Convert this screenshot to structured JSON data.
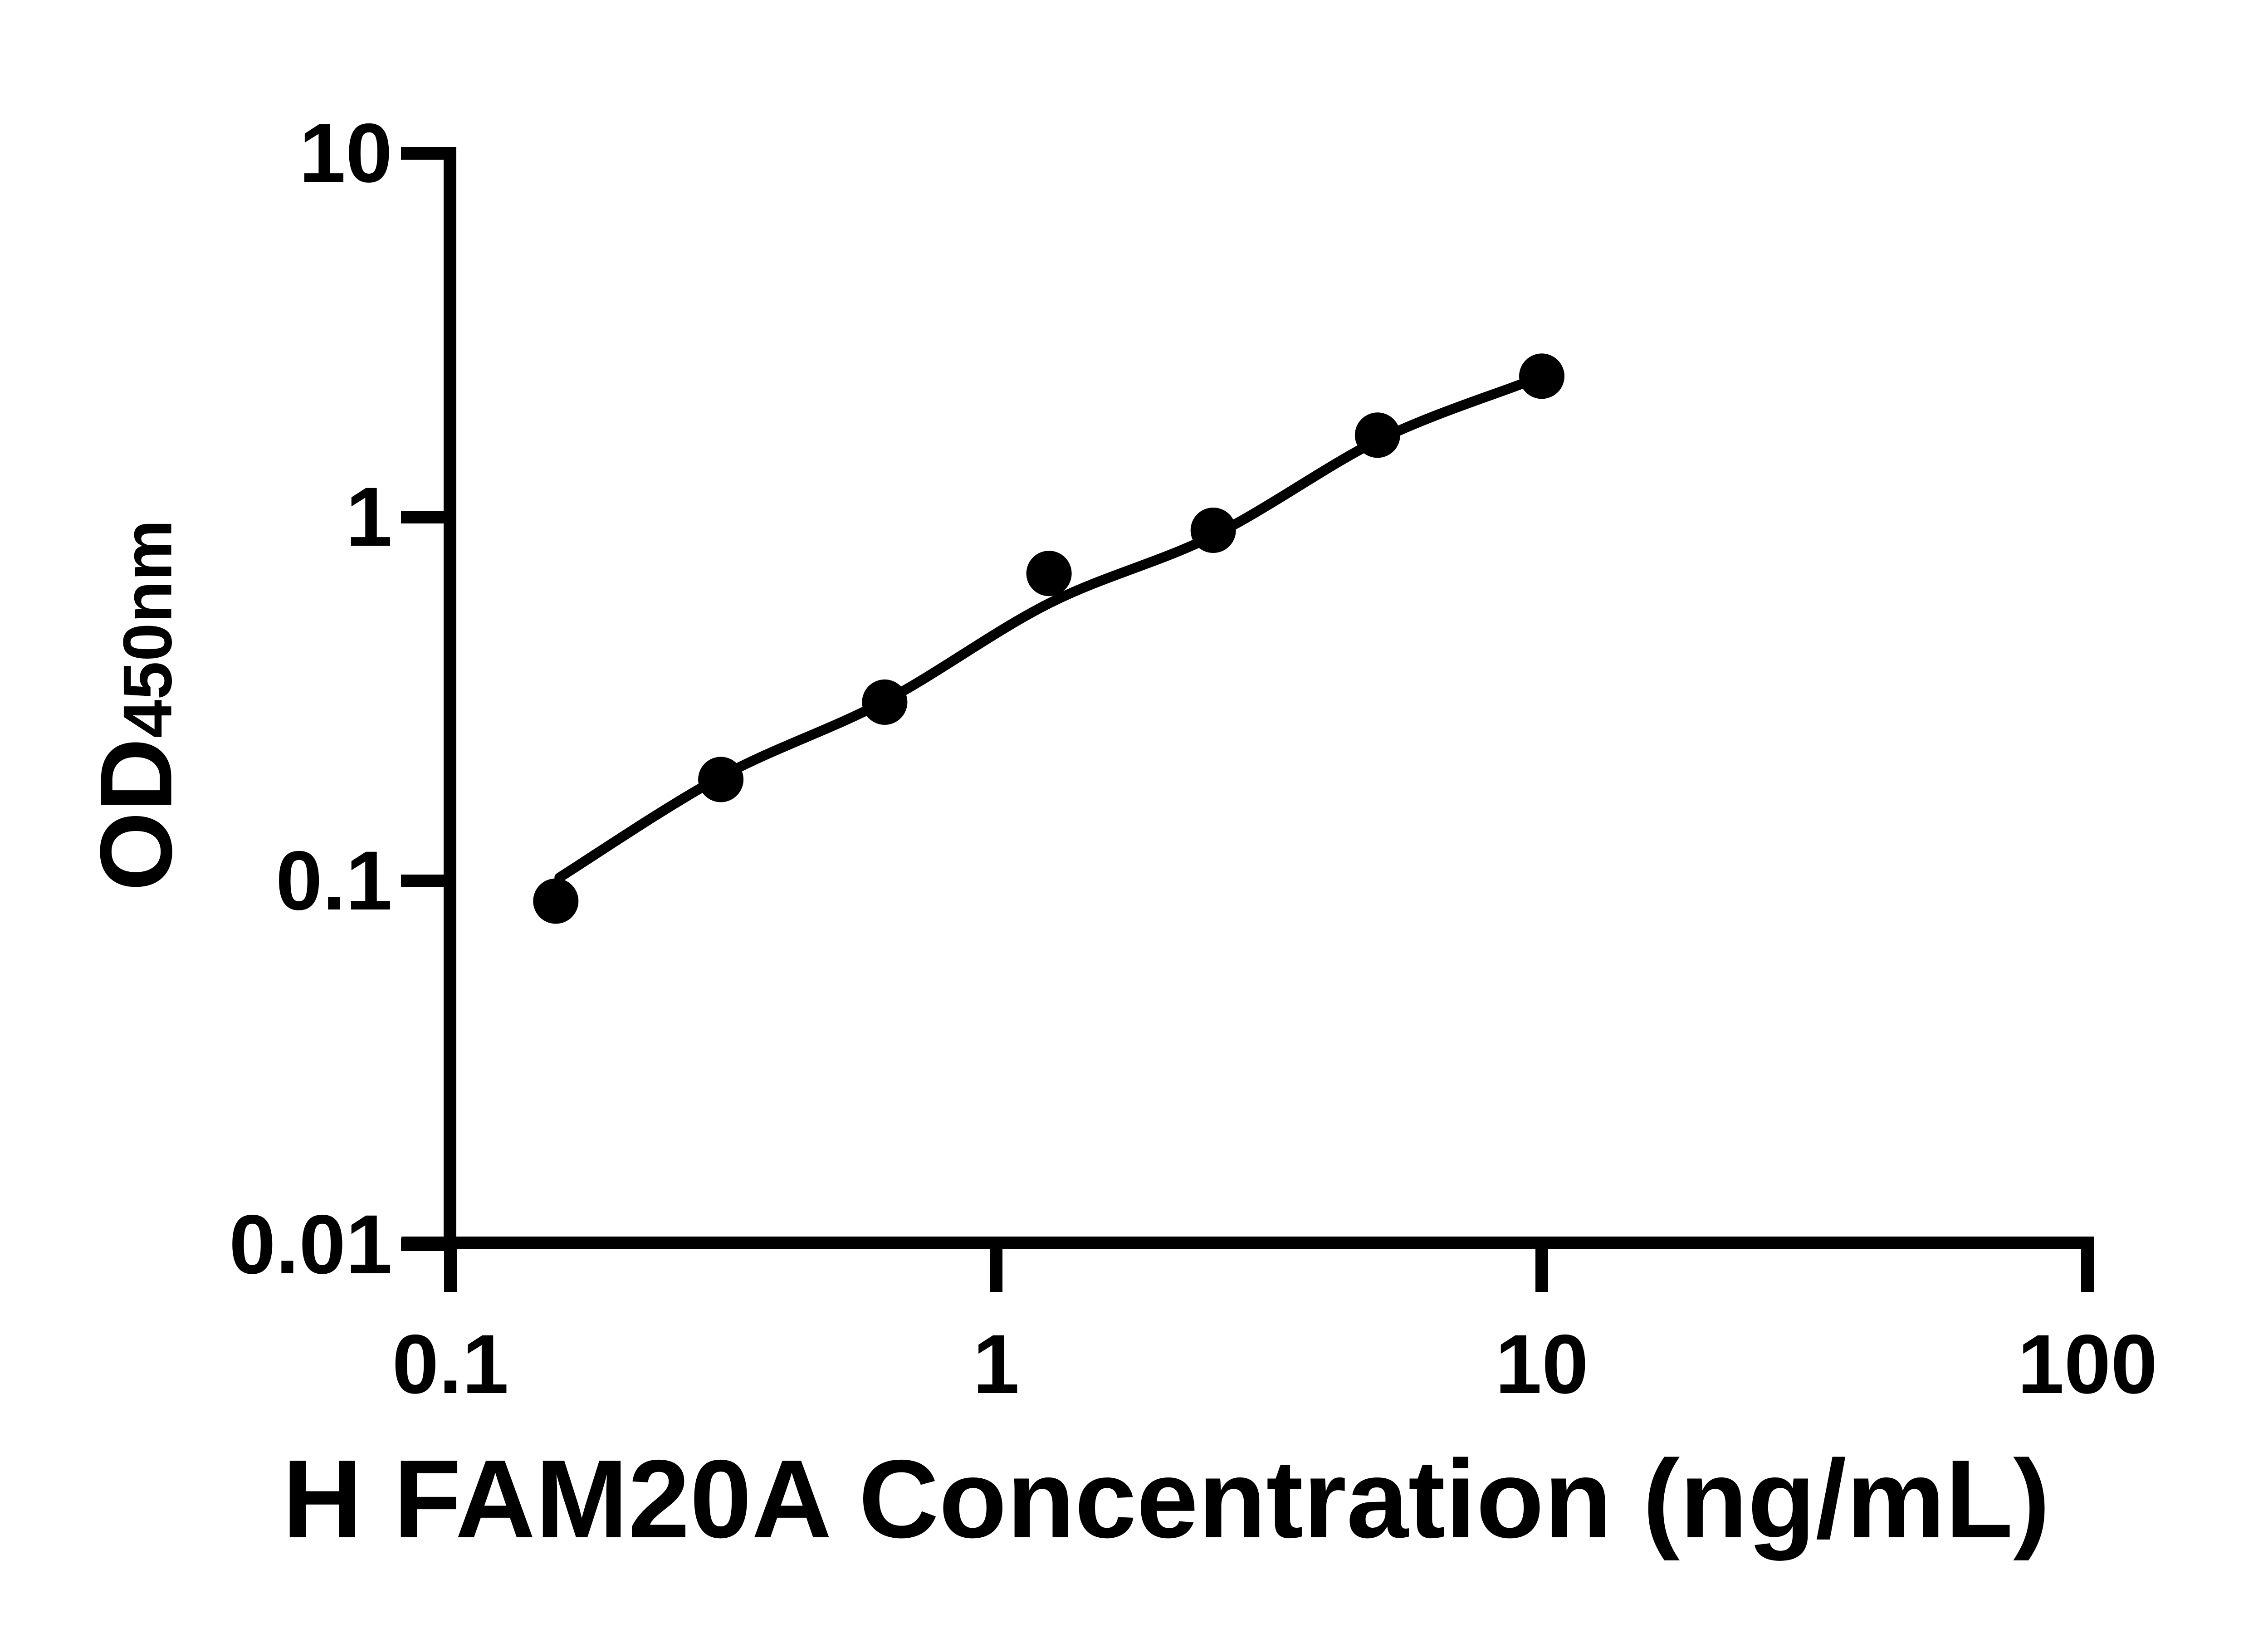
{
  "figure": {
    "background_color": "#ffffff",
    "ink_color": "#000000"
  },
  "chart_data": {
    "type": "scatter",
    "title": "",
    "xlabel": "H FAM20A Concentration (ng/mL)",
    "ylabel": "OD450nm",
    "ylabel_main": "OD",
    "ylabel_sub": "450nm",
    "x_scale": "log10",
    "y_scale": "log10",
    "xlim": [
      0.1,
      100
    ],
    "ylim": [
      0.01,
      10
    ],
    "x_ticks": [
      0.1,
      1,
      10,
      100
    ],
    "x_tick_labels": [
      "0.1",
      "1",
      "10",
      "100"
    ],
    "y_ticks": [
      10,
      1,
      0.1,
      0.01
    ],
    "y_tick_labels": [
      "10",
      "1",
      "0.1",
      "0.01"
    ],
    "grid": false,
    "legend": null,
    "marker": {
      "shape": "circle",
      "color": "#000000"
    },
    "line": {
      "style": "smooth-fit-curve",
      "color": "#000000"
    },
    "points": [
      {
        "x": 0.156,
        "y": 0.088
      },
      {
        "x": 0.313,
        "y": 0.19
      },
      {
        "x": 0.625,
        "y": 0.31
      },
      {
        "x": 1.25,
        "y": 0.7
      },
      {
        "x": 2.5,
        "y": 0.92
      },
      {
        "x": 5,
        "y": 1.68
      },
      {
        "x": 10,
        "y": 2.44
      }
    ]
  }
}
